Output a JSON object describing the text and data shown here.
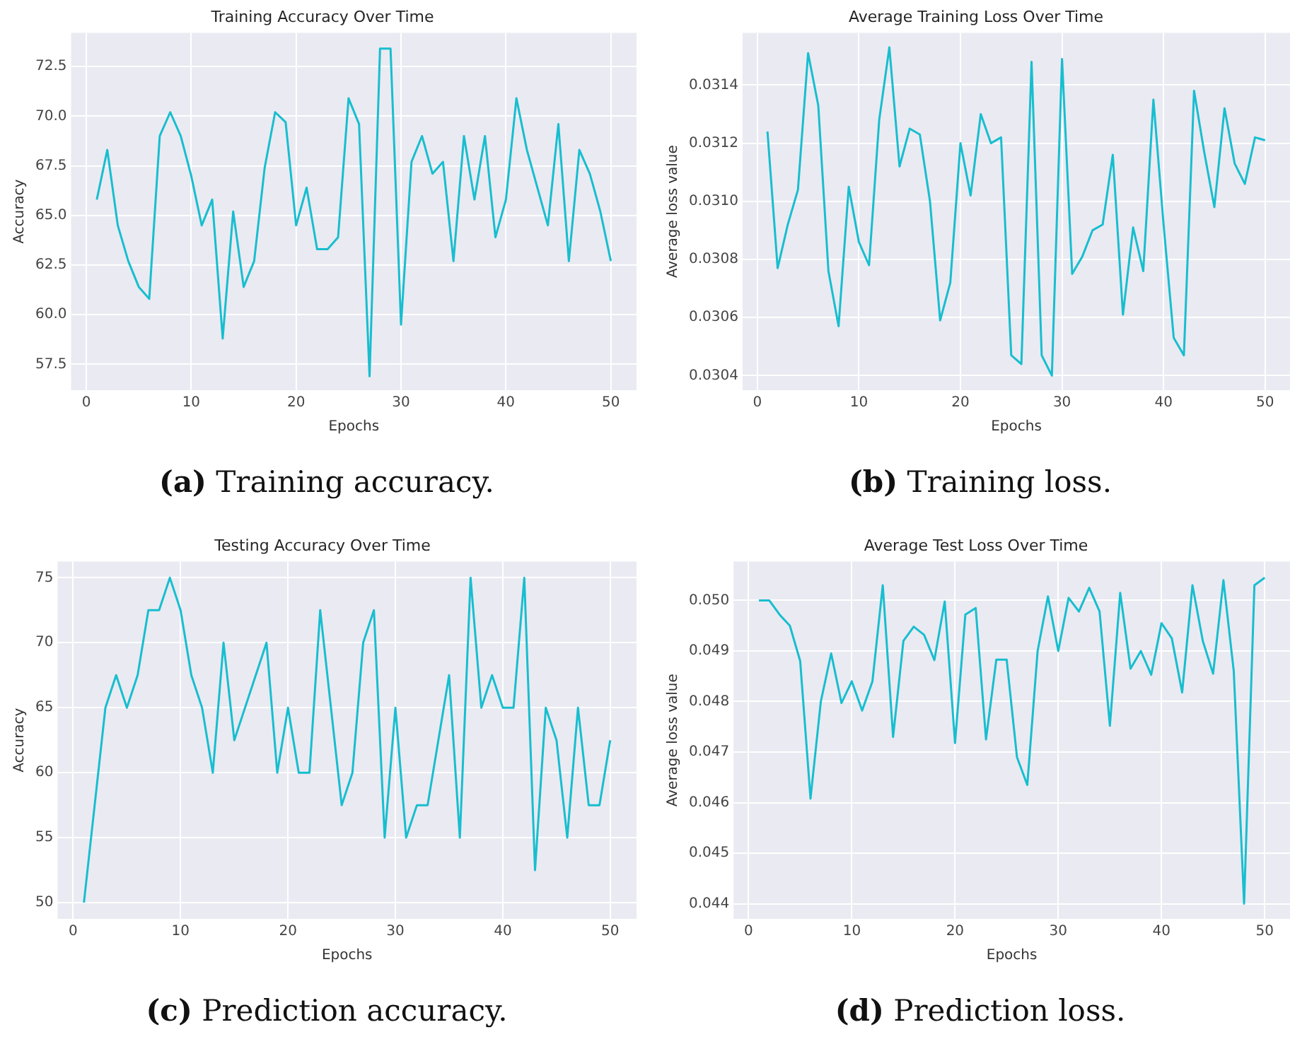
{
  "chart_data": [
    {
      "type": "line",
      "title": "Training Accuracy Over Time",
      "xlabel": "Epochs",
      "ylabel": "Accuracy",
      "annotations": [
        "(a) Training accuracy."
      ],
      "grid": true,
      "marker": "none",
      "line_style": "solid",
      "x": [
        1,
        2,
        3,
        4,
        5,
        6,
        7,
        8,
        9,
        10,
        11,
        12,
        13,
        14,
        15,
        16,
        17,
        18,
        19,
        20,
        21,
        22,
        23,
        24,
        25,
        26,
        27,
        28,
        29,
        30,
        31,
        32,
        33,
        34,
        35,
        36,
        37,
        38,
        39,
        40,
        41,
        42,
        43,
        44,
        45,
        46,
        47,
        48,
        49,
        50
      ],
      "series": [
        {
          "color": "#17becf",
          "values": [
            65.8,
            68.3,
            64.5,
            62.7,
            61.4,
            60.8,
            69.0,
            70.2,
            69.0,
            67.0,
            64.5,
            65.8,
            58.8,
            65.2,
            61.4,
            62.7,
            67.4,
            70.2,
            69.7,
            64.5,
            66.4,
            63.3,
            63.3,
            63.9,
            70.9,
            69.6,
            56.9,
            73.4,
            73.4,
            59.5,
            67.7,
            69.0,
            67.1,
            67.7,
            62.7,
            69.0,
            65.8,
            69.0,
            63.9,
            65.8,
            70.9,
            68.3,
            66.4,
            64.5,
            69.6,
            62.7,
            68.3,
            67.1,
            65.2,
            62.7
          ]
        }
      ],
      "xlim": [
        -1.45,
        52.45
      ],
      "xticks": [
        0,
        10,
        20,
        30,
        40,
        50
      ],
      "ylim": [
        56.2,
        74.2
      ],
      "yticks": [
        57.5,
        {
          "value": 60,
          "label": "60.0"
        },
        62.5,
        {
          "value": 65,
          "label": "65.0"
        },
        67.5,
        {
          "value": 70,
          "label": "70.0"
        },
        72.5
      ]
    },
    {
      "type": "line",
      "title": "Average Training Loss Over Time",
      "xlabel": "Epochs",
      "ylabel": "Average loss value",
      "annotations": [
        "(b) Training loss."
      ],
      "grid": true,
      "marker": "none",
      "line_style": "solid",
      "x": [
        1,
        2,
        3,
        4,
        5,
        6,
        7,
        8,
        9,
        10,
        11,
        12,
        13,
        14,
        15,
        16,
        17,
        18,
        19,
        20,
        21,
        22,
        23,
        24,
        25,
        26,
        27,
        28,
        29,
        30,
        31,
        32,
        33,
        34,
        35,
        36,
        37,
        38,
        39,
        40,
        41,
        42,
        43,
        44,
        45,
        46,
        47,
        48,
        49,
        50
      ],
      "series": [
        {
          "color": "#17becf",
          "values": [
            0.03124,
            0.03077,
            0.03092,
            0.03104,
            0.03151,
            0.03133,
            0.03076,
            0.03057,
            0.03105,
            0.03086,
            0.03078,
            0.03128,
            0.03153,
            0.03112,
            0.03125,
            0.03123,
            0.031,
            0.03059,
            0.03072,
            0.0312,
            0.03102,
            0.0313,
            0.0312,
            0.03122,
            0.03047,
            0.03044,
            0.03148,
            0.03047,
            0.0304,
            0.03149,
            0.03075,
            0.03081,
            0.0309,
            0.03092,
            0.03116,
            0.03061,
            0.03091,
            0.03076,
            0.03135,
            0.03092,
            0.03053,
            0.03047,
            0.03138,
            0.03117,
            0.03098,
            0.03132,
            0.03113,
            0.03106,
            0.03122,
            0.03121
          ]
        }
      ],
      "xlim": [
        -1.45,
        52.45
      ],
      "xticks": [
        0,
        10,
        20,
        30,
        40,
        50
      ],
      "ylim": [
        0.03035,
        0.03158
      ],
      "yticks": [
        {
          "value": 0.0304,
          "label": "0.0304"
        },
        {
          "value": 0.0306,
          "label": "0.0306"
        },
        {
          "value": 0.0308,
          "label": "0.0308"
        },
        {
          "value": 0.031,
          "label": "0.0310"
        },
        {
          "value": 0.0312,
          "label": "0.0312"
        },
        {
          "value": 0.0314,
          "label": "0.0314"
        }
      ]
    },
    {
      "type": "line",
      "title": "Testing Accuracy Over Time",
      "xlabel": "Epochs",
      "ylabel": "Accuracy",
      "annotations": [
        "(c) Prediction accuracy."
      ],
      "grid": true,
      "marker": "none",
      "line_style": "solid",
      "x": [
        1,
        2,
        3,
        4,
        5,
        6,
        7,
        8,
        9,
        10,
        11,
        12,
        13,
        14,
        15,
        16,
        17,
        18,
        19,
        20,
        21,
        22,
        23,
        24,
        25,
        26,
        27,
        28,
        29,
        30,
        31,
        32,
        33,
        34,
        35,
        36,
        37,
        38,
        39,
        40,
        41,
        42,
        43,
        44,
        45,
        46,
        47,
        48,
        49,
        50
      ],
      "series": [
        {
          "color": "#17becf",
          "values": [
            50,
            57.5,
            65,
            67.5,
            65,
            67.5,
            72.5,
            72.5,
            75,
            72.5,
            67.5,
            65,
            60,
            70,
            62.5,
            65,
            67.5,
            70,
            60,
            65,
            60,
            60,
            72.5,
            65,
            57.5,
            60,
            70,
            72.5,
            55,
            65,
            55,
            57.5,
            57.5,
            62.5,
            67.5,
            55,
            75,
            65,
            67.5,
            65,
            65,
            75,
            52.5,
            65,
            62.5,
            55,
            65,
            57.5,
            57.5,
            62.5
          ]
        }
      ],
      "xlim": [
        -1.45,
        52.45
      ],
      "xticks": [
        0,
        10,
        20,
        30,
        40,
        50
      ],
      "ylim": [
        48.75,
        76.25
      ],
      "yticks": [
        50,
        55,
        60,
        65,
        70,
        75
      ]
    },
    {
      "type": "line",
      "title": "Average Test Loss Over Time",
      "xlabel": "Epochs",
      "ylabel": "Average loss value",
      "annotations": [
        "(d) Prediction loss."
      ],
      "grid": true,
      "marker": "none",
      "line_style": "solid",
      "x": [
        1,
        2,
        3,
        4,
        5,
        6,
        7,
        8,
        9,
        10,
        11,
        12,
        13,
        14,
        15,
        16,
        17,
        18,
        19,
        20,
        21,
        22,
        23,
        24,
        25,
        26,
        27,
        28,
        29,
        30,
        31,
        32,
        33,
        34,
        35,
        36,
        37,
        38,
        39,
        40,
        41,
        42,
        43,
        44,
        45,
        46,
        47,
        48,
        49,
        50
      ],
      "series": [
        {
          "color": "#17becf",
          "values": [
            0.05,
            0.05,
            0.04972,
            0.0495,
            0.0488,
            0.04608,
            0.048,
            0.04895,
            0.04797,
            0.0484,
            0.04782,
            0.0484,
            0.0503,
            0.0473,
            0.0492,
            0.04948,
            0.04932,
            0.04882,
            0.04998,
            0.04718,
            0.04972,
            0.04985,
            0.04725,
            0.04883,
            0.04883,
            0.0469,
            0.04635,
            0.049,
            0.05008,
            0.049,
            0.05005,
            0.04978,
            0.05025,
            0.04978,
            0.04752,
            0.05015,
            0.04865,
            0.049,
            0.04853,
            0.04955,
            0.04925,
            0.04818,
            0.0503,
            0.0492,
            0.04855,
            0.0504,
            0.0486,
            0.044,
            0.0503,
            0.05045
          ]
        }
      ],
      "xlim": [
        -1.45,
        52.45
      ],
      "xticks": [
        0,
        10,
        20,
        30,
        40,
        50
      ],
      "ylim": [
        0.0437,
        0.05077
      ],
      "yticks": [
        {
          "value": 0.044,
          "label": "0.044"
        },
        {
          "value": 0.045,
          "label": "0.045"
        },
        {
          "value": 0.046,
          "label": "0.046"
        },
        {
          "value": 0.047,
          "label": "0.047"
        },
        {
          "value": 0.048,
          "label": "0.048"
        },
        {
          "value": 0.049,
          "label": "0.049"
        },
        {
          "value": 0.05,
          "label": "0.050"
        }
      ]
    }
  ]
}
